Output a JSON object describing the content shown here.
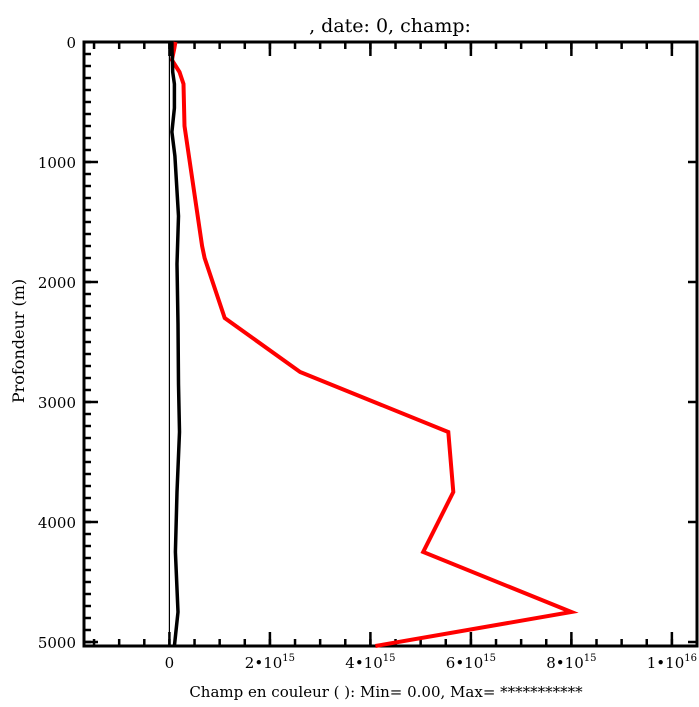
{
  "chart_data": {
    "type": "line",
    "title": ", date: 0, champ:",
    "ylabel": "Profondeur (m)",
    "xlabel": "Champ en couleur ( ): Min= 0.00, Max= ***********",
    "xlim": [
      -1700000000000000.0,
      1.05e+16
    ],
    "ylim": [
      5000,
      0
    ],
    "y_inverted": true,
    "y_ticks": [
      0,
      1000,
      2000,
      3000,
      4000,
      5000
    ],
    "y_tick_labels": [
      "0",
      "1000",
      "2000",
      "3000",
      "4000",
      "5000"
    ],
    "x_ticks": [
      0,
      2000000000000000.0,
      4000000000000000.0,
      6000000000000000.0,
      8000000000000000.0,
      1e+16
    ],
    "x_tick_labels": [
      {
        "base": "0",
        "exp": ""
      },
      {
        "base": "2•10",
        "exp": "15"
      },
      {
        "base": "4•10",
        "exp": "15"
      },
      {
        "base": "6•10",
        "exp": "15"
      },
      {
        "base": "8•10",
        "exp": "15"
      },
      {
        "base": "1•10",
        "exp": "16"
      }
    ],
    "series": [
      {
        "color": "#ff0000",
        "points": [
          [
            120000000000000.0,
            0
          ],
          [
            100000000000000.0,
            50
          ],
          [
            50000000000000.0,
            150
          ],
          [
            200000000000000.0,
            250
          ],
          [
            280000000000000.0,
            350
          ],
          [
            300000000000000.0,
            700
          ],
          [
            650000000000000.0,
            1700
          ],
          [
            700000000000000.0,
            1800
          ],
          [
            1100000000000000.0,
            2300
          ],
          [
            2600000000000000.0,
            2750
          ],
          [
            5550000000000000.0,
            3250
          ],
          [
            5650000000000000.0,
            3750
          ],
          [
            5050000000000000.0,
            4250
          ],
          [
            8000000000000000.0,
            4750
          ],
          [
            4100000000000000.0,
            5050
          ]
        ]
      },
      {
        "color": "#000000",
        "points": [
          [
            50000000000000.0,
            0
          ],
          [
            50000000000000.0,
            50
          ],
          [
            60000000000000.0,
            150
          ],
          [
            65000000000000.0,
            250
          ],
          [
            100000000000000.0,
            350
          ],
          [
            100000000000000.0,
            550
          ],
          [
            50000000000000.0,
            750
          ],
          [
            110000000000000.0,
            950
          ],
          [
            180000000000000.0,
            1450
          ],
          [
            150000000000000.0,
            1850
          ],
          [
            170000000000000.0,
            2350
          ],
          [
            180000000000000.0,
            2850
          ],
          [
            200000000000000.0,
            3250
          ],
          [
            150000000000000.0,
            3750
          ],
          [
            120000000000000.0,
            4250
          ],
          [
            170000000000000.0,
            4750
          ],
          [
            100000000000000.0,
            5050
          ]
        ]
      },
      {
        "color": "#000000",
        "points": [
          [
            0,
            0
          ],
          [
            0,
            5050
          ]
        ]
      }
    ]
  }
}
